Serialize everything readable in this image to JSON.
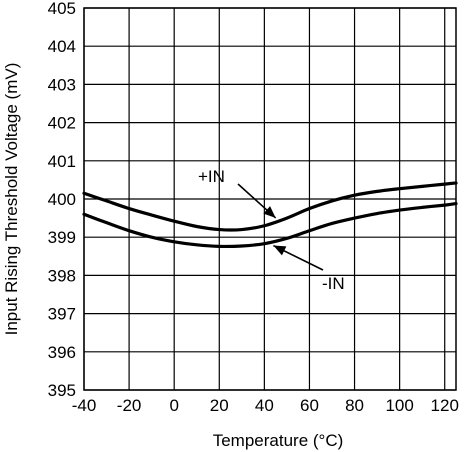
{
  "chart_data": {
    "type": "line",
    "title": "",
    "xlabel": "Temperature (°C)",
    "ylabel": "Input Rising Threshold Voltage (mV)",
    "xlim": [
      -40,
      125
    ],
    "ylim": [
      395,
      405
    ],
    "xticks": [
      -40,
      -20,
      0,
      20,
      40,
      60,
      80,
      100,
      120
    ],
    "yticks": [
      395,
      396,
      397,
      398,
      399,
      400,
      401,
      402,
      403,
      404,
      405
    ],
    "grid": true,
    "series": [
      {
        "name": "+IN",
        "x": [
          -40,
          -30,
          -20,
          -10,
          0,
          10,
          20,
          30,
          40,
          50,
          60,
          70,
          80,
          90,
          100,
          110,
          120,
          125
        ],
        "y": [
          400.15,
          399.95,
          399.75,
          399.58,
          399.42,
          399.28,
          399.2,
          399.2,
          399.3,
          399.5,
          399.75,
          399.95,
          400.1,
          400.2,
          400.27,
          400.33,
          400.39,
          400.42
        ]
      },
      {
        "name": "-IN",
        "x": [
          -40,
          -30,
          -20,
          -10,
          0,
          10,
          20,
          30,
          40,
          50,
          60,
          70,
          80,
          90,
          100,
          110,
          120,
          125
        ],
        "y": [
          399.6,
          399.38,
          399.17,
          399.0,
          398.88,
          398.8,
          398.76,
          398.77,
          398.83,
          398.97,
          399.17,
          399.36,
          399.5,
          399.62,
          399.71,
          399.78,
          399.84,
          399.88
        ]
      }
    ],
    "annotations": [
      {
        "text": "+IN",
        "series": "+IN"
      },
      {
        "text": "-IN",
        "series": "-IN"
      }
    ]
  }
}
